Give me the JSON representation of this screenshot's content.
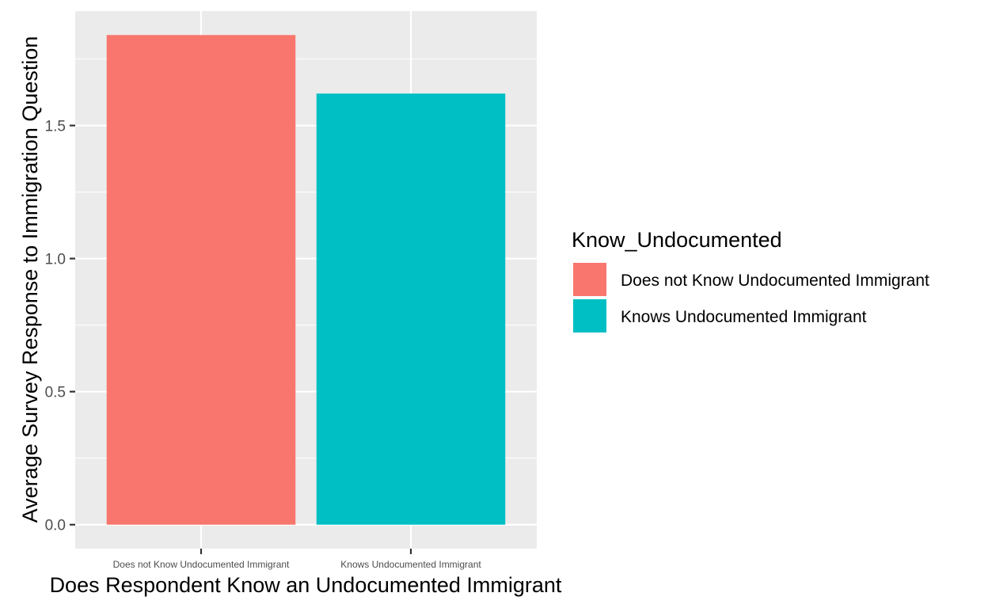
{
  "chart_data": {
    "type": "bar",
    "categories": [
      "Does not Know Undocumented Immigrant",
      "Knows Undocumented Immigrant"
    ],
    "values": [
      1.84,
      1.62
    ],
    "colors": [
      "#F8766D",
      "#00BFC4"
    ],
    "xlabel": "Does Respondent Know an Undocumented Immigrant",
    "ylabel": "Average Survey Response to Immigration Question",
    "ylim": [
      -0.09,
      1.93
    ],
    "yticks": [
      0.0,
      0.5,
      1.0,
      1.5
    ],
    "ytick_labels": [
      "0.0",
      "0.5",
      "1.0",
      "1.5"
    ],
    "grid": true,
    "legend": {
      "title": "Know_Undocumented",
      "position": "right",
      "entries": [
        "Does not Know Undocumented Immigrant",
        "Knows Undocumented Immigrant"
      ]
    }
  }
}
